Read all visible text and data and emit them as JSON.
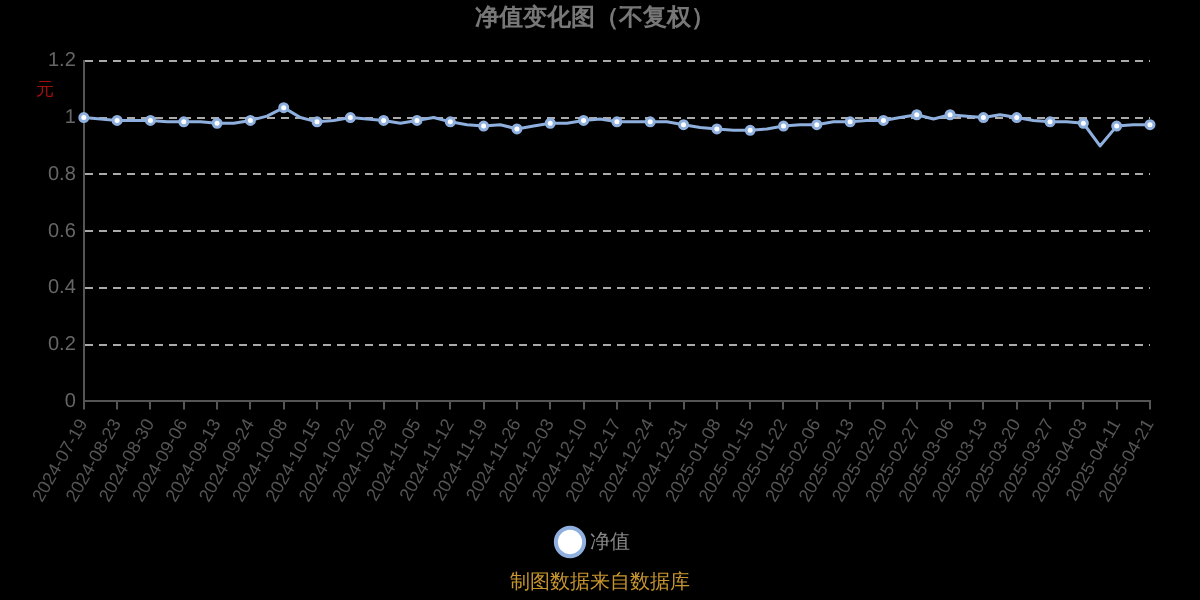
{
  "chart_data": {
    "type": "line",
    "title": "净值变化图（不复权）",
    "ylabel": "元",
    "annotations": [
      "制图数据来自数据库"
    ],
    "categories": [
      "2024-07-19",
      null,
      "2024-08-23",
      null,
      "2024-08-30",
      null,
      "2024-09-06",
      null,
      "2024-09-13",
      null,
      "2024-09-24",
      null,
      "2024-10-08",
      null,
      "2024-10-15",
      null,
      "2024-10-22",
      null,
      "2024-10-29",
      null,
      "2024-11-05",
      null,
      "2024-11-12",
      null,
      "2024-11-19",
      null,
      "2024-11-26",
      null,
      "2024-12-03",
      null,
      "2024-12-10",
      null,
      "2024-12-17",
      null,
      "2024-12-24",
      null,
      "2024-12-31",
      null,
      "2025-01-08",
      null,
      "2025-01-15",
      null,
      "2025-01-22",
      null,
      "2025-02-06",
      null,
      "2025-02-13",
      null,
      "2025-02-20",
      null,
      "2025-02-27",
      null,
      "2025-03-06",
      null,
      "2025-03-13",
      null,
      "2025-03-20",
      null,
      "2025-03-27",
      null,
      "2025-04-03",
      null,
      "2025-04-11",
      null,
      "2025-04-21"
    ],
    "series": [
      {
        "name": "净值",
        "color": "#8fb0de",
        "values": [
          1.0,
          0.995,
          0.99,
          0.99,
          0.99,
          0.985,
          0.985,
          0.985,
          0.98,
          0.98,
          0.99,
          1.005,
          1.035,
          1.0,
          0.985,
          0.99,
          1.0,
          0.995,
          0.99,
          0.98,
          0.99,
          1.0,
          0.985,
          0.975,
          0.97,
          0.975,
          0.96,
          0.97,
          0.98,
          0.98,
          0.99,
          0.995,
          0.985,
          0.985,
          0.985,
          0.985,
          0.975,
          0.965,
          0.96,
          0.955,
          0.955,
          0.96,
          0.97,
          0.975,
          0.975,
          0.985,
          0.985,
          0.99,
          0.99,
          1.0,
          1.01,
          0.995,
          1.01,
          1.005,
          1.0,
          1.01,
          1.0,
          0.99,
          0.985,
          0.985,
          0.98,
          0.9,
          0.97,
          0.975,
          0.975
        ]
      }
    ],
    "ylim": [
      0,
      1.2
    ],
    "yticks": [
      0,
      0.2,
      0.4,
      0.6,
      0.8,
      1,
      1.2
    ],
    "grid": "y",
    "legend": "bottom",
    "marker": "circle",
    "line_style": "solid"
  }
}
